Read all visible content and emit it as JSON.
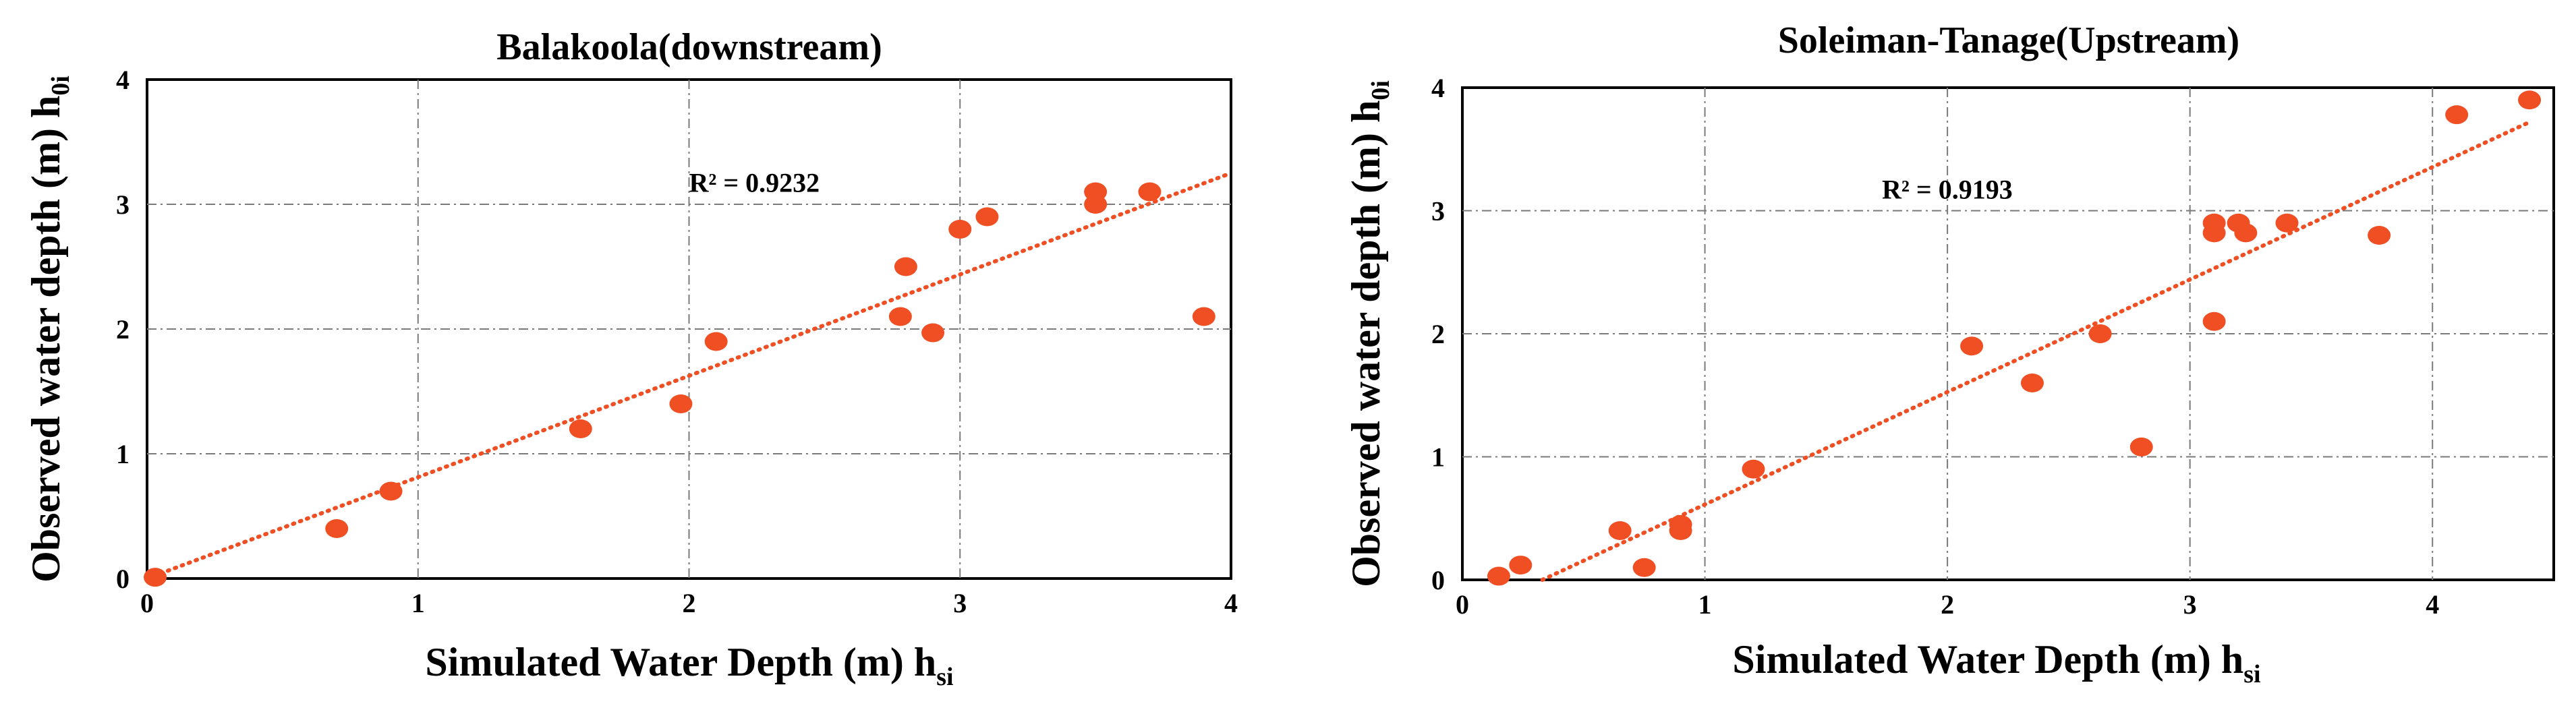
{
  "chart_data": [
    {
      "type": "scatter",
      "title": "Balakoola(downstream)",
      "xlabel": "Simulated Water Depth (m) h",
      "xlabel_sub": "si",
      "ylabel": "Observed water depth (m) h",
      "ylabel_sub": "0i",
      "xlim": [
        0,
        4
      ],
      "ylim": [
        0,
        4
      ],
      "xticks": [
        0,
        1,
        2,
        3,
        4
      ],
      "yticks": [
        0,
        1,
        2,
        3,
        4
      ],
      "xtick_labels": [
        "0",
        "1",
        "2",
        "3",
        "4"
      ],
      "ytick_labels": [
        "0",
        "1",
        "2",
        "3",
        "4"
      ],
      "grid": true,
      "r2_label": "R² = 0.9232",
      "r2_anchor": [
        2.0,
        3.1
      ],
      "trendline": {
        "x": [
          0.0,
          4.0
        ],
        "y": [
          0.0,
          3.25
        ]
      },
      "series": [
        {
          "name": "observed",
          "color": "#f04e23",
          "x": [
            0.03,
            0.7,
            0.9,
            1.6,
            1.97,
            2.1,
            2.78,
            2.8,
            2.9,
            3.0,
            3.1,
            3.5,
            3.5,
            3.7,
            3.9
          ],
          "y": [
            0.01,
            0.4,
            0.7,
            1.2,
            1.4,
            1.9,
            2.1,
            2.5,
            1.97,
            2.8,
            2.9,
            3.0,
            3.1,
            3.1,
            2.1
          ]
        }
      ],
      "trend_color": "#f04e23"
    },
    {
      "type": "scatter",
      "title": "Soleiman-Tanage(Upstream)",
      "xlabel": "Simulated Water Depth (m) h",
      "xlabel_sub": "si",
      "ylabel": "Observed water depth (m) h",
      "ylabel_sub": "0i",
      "xlim": [
        0,
        4.5
      ],
      "ylim": [
        0,
        4
      ],
      "xticks": [
        0,
        1,
        2,
        3,
        4
      ],
      "yticks": [
        0,
        1,
        2,
        3,
        4
      ],
      "xtick_labels": [
        "0",
        "1",
        "2",
        "3",
        "4"
      ],
      "ytick_labels": [
        "0",
        "1",
        "2",
        "3",
        "4"
      ],
      "grid": true,
      "r2_label": "R² = 0.9193",
      "r2_anchor": [
        1.73,
        3.1
      ],
      "trendline": {
        "x": [
          0.33,
          4.4
        ],
        "y": [
          0.0,
          3.72
        ]
      },
      "series": [
        {
          "name": "observed",
          "color": "#f04e23",
          "x": [
            0.15,
            0.24,
            0.65,
            0.75,
            0.9,
            0.9,
            1.2,
            2.1,
            2.35,
            2.63,
            2.8,
            3.1,
            3.1,
            3.1,
            3.2,
            3.23,
            3.4,
            3.78,
            4.1,
            4.4
          ],
          "y": [
            0.03,
            0.12,
            0.4,
            0.1,
            0.45,
            0.4,
            0.9,
            1.9,
            1.6,
            2.0,
            1.08,
            2.9,
            2.82,
            2.1,
            2.9,
            2.82,
            2.9,
            2.8,
            3.78,
            3.9
          ]
        }
      ],
      "trend_color": "#f04e23"
    }
  ]
}
